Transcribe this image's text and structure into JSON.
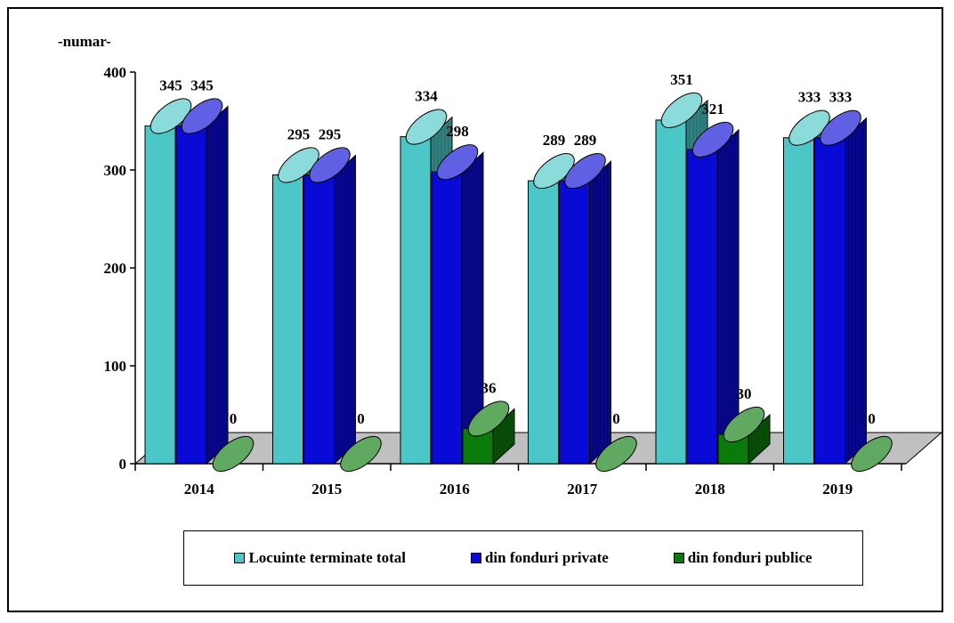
{
  "chart_data": {
    "type": "bar",
    "ylabel": "-numar-",
    "ylim": [
      0,
      400
    ],
    "yticks": [
      0,
      100,
      200,
      300,
      400
    ],
    "categories": [
      "2014",
      "2015",
      "2016",
      "2017",
      "2018",
      "2019"
    ],
    "series": [
      {
        "name": "Locuinte terminate total",
        "color": "#4cc7c7",
        "values": [
          345,
          295,
          334,
          289,
          351,
          333
        ]
      },
      {
        "name": "din fonduri private",
        "color": "#0a0ad6",
        "values": [
          345,
          295,
          298,
          289,
          321,
          333
        ]
      },
      {
        "name": "din fonduri publice",
        "color": "#0a7a0a",
        "values": [
          0,
          0,
          36,
          0,
          30,
          0
        ]
      }
    ],
    "floor_color": "#c0c0c0",
    "grid": false,
    "legend_position": "bottom",
    "style": "3d-cylinder"
  }
}
